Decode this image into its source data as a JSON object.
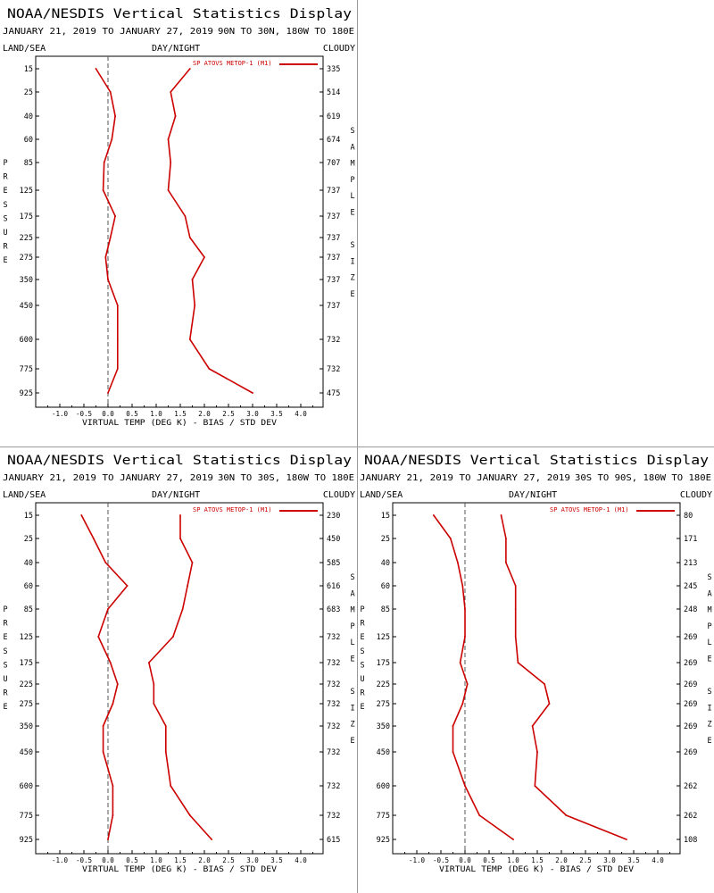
{
  "panels": [
    {
      "title": "NOAA/NESDIS Vertical Statistics Display",
      "date_range": "JANUARY 21, 2019 TO JANUARY 27, 2019",
      "region": "90N TO 30N, 180W TO 180E",
      "left_header": "LAND/SEA",
      "center_header": "DAY/NIGHT",
      "right_header": "CLOUDY",
      "left_axis_letters": [
        "P",
        "R",
        "E",
        "S",
        "S",
        "U",
        "R",
        "E"
      ],
      "right_axis_letters": [
        "S",
        "A",
        "M",
        "P",
        "L",
        "E",
        "",
        "S",
        "I",
        "Z",
        "E"
      ],
      "legend_label": "SP ATOVS METOP-1 (M1)",
      "xlabel": "VIRTUAL TEMP (DEG K) - BIAS / STD DEV",
      "pressure_labels": [
        "15",
        "25",
        "40",
        "60",
        "85",
        "125",
        "175",
        "225",
        "275",
        "350",
        "450",
        "600",
        "775",
        "925"
      ],
      "sample_sizes": [
        "335",
        "514",
        "619",
        "674",
        "707",
        "737",
        "737",
        "737",
        "737",
        "737",
        "737",
        "732",
        "732",
        "475"
      ],
      "x_ticks": [
        "-1.0",
        "-0.5",
        "0.0",
        "0.5",
        "1.0",
        "1.5",
        "2.0",
        "2.5",
        "3.0",
        "3.5",
        "4.0"
      ]
    },
    {
      "title": "NOAA/NESDIS Vertical Statistics Display",
      "date_range": "JANUARY 21, 2019 TO JANUARY 27, 2019",
      "region": "30N TO 30S, 180W TO 180E",
      "left_header": "LAND/SEA",
      "center_header": "DAY/NIGHT",
      "right_header": "CLOUDY",
      "left_axis_letters": [
        "P",
        "R",
        "E",
        "S",
        "S",
        "U",
        "R",
        "E"
      ],
      "right_axis_letters": [
        "S",
        "A",
        "M",
        "P",
        "L",
        "E",
        "",
        "S",
        "I",
        "Z",
        "E"
      ],
      "legend_label": "SP ATOVS METOP-1 (M1)",
      "xlabel": "VIRTUAL TEMP (DEG K) - BIAS / STD DEV",
      "pressure_labels": [
        "15",
        "25",
        "40",
        "60",
        "85",
        "125",
        "175",
        "225",
        "275",
        "350",
        "450",
        "600",
        "775",
        "925"
      ],
      "sample_sizes": [
        "230",
        "450",
        "585",
        "616",
        "683",
        "732",
        "732",
        "732",
        "732",
        "732",
        "732",
        "732",
        "732",
        "615"
      ],
      "x_ticks": [
        "-1.0",
        "-0.5",
        "0.0",
        "0.5",
        "1.0",
        "1.5",
        "2.0",
        "2.5",
        "3.0",
        "3.5",
        "4.0"
      ]
    },
    {
      "title": "NOAA/NESDIS Vertical Statistics Display",
      "date_range": "JANUARY 21, 2019 TO JANUARY 27, 2019",
      "region": "30S TO 90S, 180W TO 180E",
      "left_header": "LAND/SEA",
      "center_header": "DAY/NIGHT",
      "right_header": "CLOUDY",
      "left_axis_letters": [
        "P",
        "R",
        "E",
        "S",
        "S",
        "U",
        "R",
        "E"
      ],
      "right_axis_letters": [
        "S",
        "A",
        "M",
        "P",
        "L",
        "E",
        "",
        "S",
        "I",
        "Z",
        "E"
      ],
      "legend_label": "SP ATOVS METOP-1 (M1)",
      "xlabel": "VIRTUAL TEMP (DEG K) - BIAS / STD DEV",
      "pressure_labels": [
        "15",
        "25",
        "40",
        "60",
        "85",
        "125",
        "175",
        "225",
        "275",
        "350",
        "450",
        "600",
        "775",
        "925"
      ],
      "sample_sizes": [
        "80",
        "171",
        "213",
        "245",
        "248",
        "269",
        "269",
        "269",
        "269",
        "269",
        "269",
        "262",
        "262",
        "108"
      ],
      "x_ticks": [
        "-1.0",
        "-0.5",
        "0.0",
        "0.5",
        "1.0",
        "1.5",
        "2.0",
        "2.5",
        "3.0",
        "3.5",
        "4.0"
      ]
    }
  ],
  "chart_data": [
    {
      "type": "line",
      "title": "NOAA/NESDIS Vertical Statistics Display",
      "subtitle": "JANUARY 21, 2019 TO JANUARY 27, 2019  90N TO 30N, 180W TO 180E",
      "xlabel": "VIRTUAL TEMP (DEG K) - BIAS / STD DEV",
      "ylabel": "PRESSURE",
      "y2label": "SAMPLE SIZE",
      "xlim": [
        -1.5,
        4.5
      ],
      "y_reversed": true,
      "pressure": [
        15,
        25,
        40,
        60,
        85,
        125,
        175,
        225,
        275,
        350,
        450,
        600,
        775,
        925
      ],
      "series": [
        {
          "role": "bias",
          "values": [
            -0.25,
            0.05,
            0.15,
            0.08,
            -0.08,
            -0.1,
            0.15,
            0.05,
            -0.05,
            0.0,
            0.2,
            0.2,
            0.2,
            0.0
          ]
        },
        {
          "role": "std_dev",
          "values": [
            1.7,
            1.3,
            1.4,
            1.25,
            1.3,
            1.25,
            1.6,
            1.7,
            2.0,
            1.75,
            1.8,
            1.7,
            2.1,
            3.0
          ]
        }
      ],
      "sample_size": [
        335,
        514,
        619,
        674,
        707,
        737,
        737,
        737,
        737,
        737,
        737,
        732,
        732,
        475
      ],
      "legend": [
        "SP ATOVS METOP-1 (M1)"
      ],
      "legend_position": "top-right",
      "grid": false,
      "colors": {
        "series": "#cc0000",
        "zero_line": "#555555"
      }
    },
    {
      "type": "line",
      "title": "NOAA/NESDIS Vertical Statistics Display",
      "subtitle": "JANUARY 21, 2019 TO JANUARY 27, 2019  30N TO 30S, 180W TO 180E",
      "xlabel": "VIRTUAL TEMP (DEG K) - BIAS / STD DEV",
      "ylabel": "PRESSURE",
      "y2label": "SAMPLE SIZE",
      "xlim": [
        -1.5,
        4.5
      ],
      "y_reversed": true,
      "pressure": [
        15,
        25,
        40,
        60,
        85,
        125,
        175,
        225,
        275,
        350,
        450,
        600,
        775,
        925
      ],
      "series": [
        {
          "role": "bias",
          "values": [
            -0.55,
            -0.3,
            -0.05,
            0.4,
            0.0,
            -0.2,
            0.05,
            0.2,
            0.1,
            -0.1,
            -0.1,
            0.1,
            0.1,
            0.0
          ]
        },
        {
          "role": "std_dev",
          "values": [
            1.5,
            1.5,
            1.75,
            1.65,
            1.55,
            1.35,
            0.85,
            0.95,
            0.95,
            1.2,
            1.2,
            1.3,
            1.7,
            2.15
          ]
        }
      ],
      "sample_size": [
        230,
        450,
        585,
        616,
        683,
        732,
        732,
        732,
        732,
        732,
        732,
        732,
        732,
        615
      ],
      "legend": [
        "SP ATOVS METOP-1 (M1)"
      ],
      "legend_position": "top-right",
      "grid": false,
      "colors": {
        "series": "#cc0000",
        "zero_line": "#555555"
      }
    },
    {
      "type": "line",
      "title": "NOAA/NESDIS Vertical Statistics Display",
      "subtitle": "JANUARY 21, 2019 TO JANUARY 27, 2019  30S TO 90S, 180W TO 180E",
      "xlabel": "VIRTUAL TEMP (DEG K) - BIAS / STD DEV",
      "ylabel": "PRESSURE",
      "y2label": "SAMPLE SIZE",
      "xlim": [
        -1.5,
        4.5
      ],
      "y_reversed": true,
      "pressure": [
        15,
        25,
        40,
        60,
        85,
        125,
        175,
        225,
        275,
        350,
        450,
        600,
        775,
        925
      ],
      "series": [
        {
          "role": "bias",
          "values": [
            -0.65,
            -0.3,
            -0.15,
            -0.05,
            0.0,
            0.0,
            -0.1,
            0.05,
            -0.05,
            -0.25,
            -0.25,
            0.0,
            0.3,
            1.0
          ]
        },
        {
          "role": "std_dev",
          "values": [
            0.75,
            0.85,
            0.85,
            1.05,
            1.05,
            1.05,
            1.1,
            1.65,
            1.75,
            1.4,
            1.5,
            1.45,
            2.1,
            3.35
          ]
        }
      ],
      "sample_size": [
        80,
        171,
        213,
        245,
        248,
        269,
        269,
        269,
        269,
        269,
        269,
        262,
        262,
        108
      ],
      "legend": [
        "SP ATOVS METOP-1 (M1)"
      ],
      "legend_position": "top-right",
      "grid": false,
      "colors": {
        "series": "#cc0000",
        "zero_line": "#555555"
      }
    }
  ]
}
